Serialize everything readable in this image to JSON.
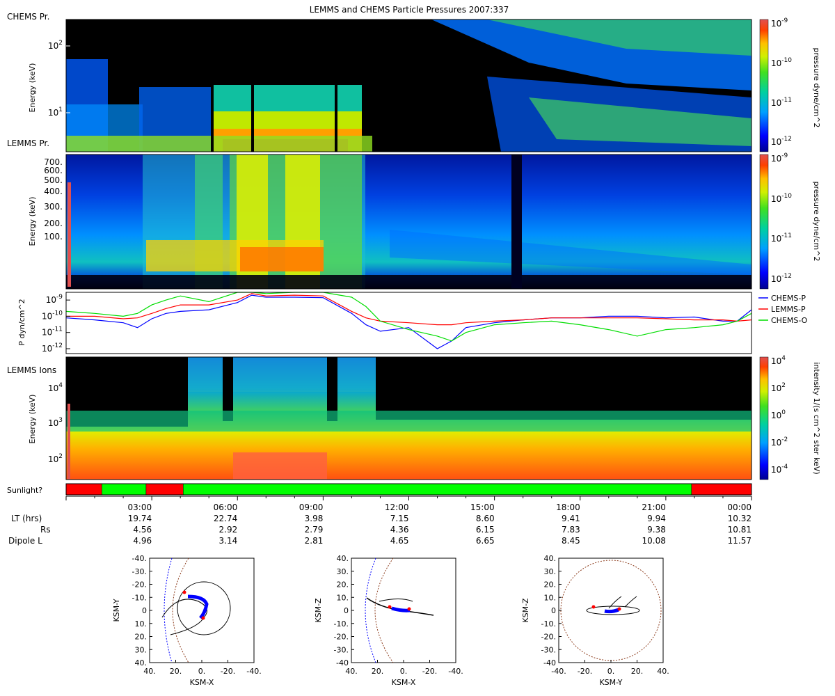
{
  "title": "LEMMS and CHEMS Particle Pressures  2007:337",
  "colors": {
    "sun_on": "#00ff00",
    "sun_off": "#ff0000",
    "chems_p": "#0000ff",
    "lemms_p": "#ff0000",
    "chems_o": "#00dd00"
  },
  "chart_data": [
    {
      "type": "heatmap",
      "name": "chems-pressure-spectrogram",
      "panel_label": "CHEMS Pr.",
      "ylabel": "Energy (keV)",
      "yscale": "log",
      "ylim": [
        3,
        220
      ],
      "ytick_labels": [
        {
          "value": 100,
          "label": "10",
          "sup": "2"
        },
        {
          "value": 10,
          "label": "10",
          "sup": "1"
        }
      ],
      "colorbar": {
        "label": "pressure dyne/cm^2",
        "scale": "log",
        "range": [
          1e-12,
          1e-09
        ],
        "ticks": [
          {
            "value": 1e-09,
            "label": "10",
            "sup": "-9"
          },
          {
            "value": 1e-10,
            "label": "10",
            "sup": "-10"
          },
          {
            "value": 1e-11,
            "label": "10",
            "sup": "-11"
          },
          {
            "value": 1e-12,
            "label": "10",
            "sup": "-12"
          }
        ]
      }
    },
    {
      "type": "heatmap",
      "name": "lemms-pressure-spectrogram",
      "panel_label": "LEMMS Pr.",
      "ylabel": "Energy (keV)",
      "yscale": "log",
      "ylim": [
        30,
        780
      ],
      "ytick_labels": [
        {
          "value": 700,
          "label": "700."
        },
        {
          "value": 600,
          "label": "600."
        },
        {
          "value": 500,
          "label": "500."
        },
        {
          "value": 400,
          "label": "400."
        },
        {
          "value": 300,
          "label": "300."
        },
        {
          "value": 200,
          "label": "200."
        },
        {
          "value": 100,
          "label": "100."
        }
      ],
      "colorbar": {
        "label": "pressure dyne/cm^2",
        "scale": "log",
        "range": [
          1e-12,
          1e-09
        ],
        "ticks": [
          {
            "value": 1e-09,
            "label": "10",
            "sup": "-9"
          },
          {
            "value": 1e-10,
            "label": "10",
            "sup": "-10"
          },
          {
            "value": 1e-11,
            "label": "10",
            "sup": "-11"
          },
          {
            "value": 1e-12,
            "label": "10",
            "sup": "-12"
          }
        ]
      }
    },
    {
      "type": "line",
      "name": "partial-pressure-lines",
      "ylabel": "P dyn/cm^2",
      "yscale": "log",
      "ylim": [
        5e-13,
        3e-09
      ],
      "ytick_labels": [
        {
          "value": 1e-09,
          "label": "10",
          "sup": "-9"
        },
        {
          "value": 1e-10,
          "label": "10",
          "sup": "-10"
        },
        {
          "value": 1e-11,
          "label": "10",
          "sup": "-11"
        },
        {
          "value": 1e-12,
          "label": "10",
          "sup": "-12"
        }
      ],
      "legend_position": "right",
      "x_hours": [
        0,
        1,
        2,
        2.5,
        3,
        3.5,
        4,
        5,
        6,
        6.5,
        7,
        8,
        9,
        10,
        10.5,
        11,
        12,
        13,
        13.5,
        14,
        15,
        16,
        17,
        18,
        19,
        20,
        21,
        22,
        23,
        23.5,
        24
      ],
      "series": [
        {
          "name": "CHEMS-P",
          "color": "#0000ff",
          "values": [
            8e-11,
            6e-11,
            4e-11,
            2e-11,
            7e-11,
            1.5e-10,
            2e-10,
            2.5e-10,
            7e-10,
            2e-09,
            1.5e-09,
            1.5e-09,
            1.4e-09,
            1.5e-10,
            3e-11,
            1.2e-11,
            2e-11,
            1e-12,
            3e-12,
            2e-11,
            4e-11,
            6e-11,
            8e-11,
            8e-11,
            1e-10,
            1e-10,
            8e-11,
            9e-11,
            5e-11,
            5e-11,
            2.5e-10
          ]
        },
        {
          "name": "LEMMS-P",
          "color": "#ff0000",
          "values": [
            1e-10,
            1e-10,
            7e-11,
            8e-11,
            1.5e-10,
            3e-10,
            5e-10,
            5e-10,
            1e-09,
            2.5e-09,
            1.8e-09,
            2e-09,
            1.8e-09,
            2e-10,
            8e-11,
            5e-11,
            4e-11,
            3e-11,
            3e-11,
            4e-11,
            5e-11,
            6e-11,
            8e-11,
            8e-11,
            8e-11,
            8e-11,
            7e-11,
            6e-11,
            6e-11,
            5e-11,
            6e-11
          ]
        },
        {
          "name": "CHEMS-O",
          "color": "#00dd00",
          "values": [
            2e-10,
            1.5e-10,
            1e-10,
            1.5e-10,
            5e-10,
            1e-09,
            1.8e-09,
            8e-10,
            3e-09,
            3e-09,
            2.5e-09,
            3e-09,
            3e-09,
            1.5e-09,
            4e-10,
            5e-11,
            1.5e-11,
            6e-12,
            3e-12,
            1e-11,
            3e-11,
            4e-11,
            5e-11,
            3e-11,
            1.5e-11,
            6e-12,
            1.5e-11,
            2e-11,
            3e-11,
            5e-11,
            1.5e-10
          ]
        }
      ]
    },
    {
      "type": "heatmap",
      "name": "lemms-ions-spectrogram",
      "panel_label": "LEMMS Ions",
      "ylabel": "Energy (keV)",
      "yscale": "log",
      "ylim": [
        25,
        60000
      ],
      "ytick_labels": [
        {
          "value": 10000,
          "label": "10",
          "sup": "4"
        },
        {
          "value": 1000,
          "label": "10",
          "sup": "3"
        },
        {
          "value": 100,
          "label": "10",
          "sup": "2"
        }
      ],
      "colorbar": {
        "label": "intensity 1/(s cm^2 ster keV)",
        "scale": "log",
        "range": [
          1e-05,
          10000.0
        ],
        "ticks": [
          {
            "value": 10000.0,
            "label": "10",
            "sup": "4"
          },
          {
            "value": 100.0,
            "label": "10",
            "sup": "2"
          },
          {
            "value": 1,
            "label": "10",
            "sup": "0"
          },
          {
            "value": 0.01,
            "label": "10",
            "sup": "-2"
          },
          {
            "value": 0.0001,
            "label": "10",
            "sup": "-4"
          }
        ]
      }
    },
    {
      "type": "bar",
      "name": "sunlight-bar",
      "label": "Sunlight?",
      "segments": [
        {
          "start_h": 0,
          "end_h": 1.25,
          "sunlit": false
        },
        {
          "start_h": 1.25,
          "end_h": 2.8,
          "sunlit": true
        },
        {
          "start_h": 2.8,
          "end_h": 4.1,
          "sunlit": false
        },
        {
          "start_h": 4.1,
          "end_h": 21.9,
          "sunlit": true
        },
        {
          "start_h": 21.9,
          "end_h": 24,
          "sunlit": false
        }
      ]
    }
  ],
  "time_axis": {
    "ticks": [
      "03:00",
      "06:00",
      "09:00",
      "12:00",
      "15:00",
      "18:00",
      "21:00",
      "00:00"
    ],
    "tick_hours": [
      3,
      6,
      9,
      12,
      15,
      18,
      21,
      24
    ],
    "rows": [
      {
        "label": "LT (hrs)",
        "values": [
          "19.74",
          "22.74",
          "3.98",
          "7.15",
          "8.60",
          "9.41",
          "9.94",
          "10.32"
        ]
      },
      {
        "label": "Rs",
        "values": [
          "4.56",
          "2.92",
          "2.79",
          "4.36",
          "6.15",
          "7.83",
          "9.38",
          "10.81"
        ]
      },
      {
        "label": "Dipole L",
        "values": [
          "4.96",
          "3.14",
          "2.81",
          "4.65",
          "6.65",
          "8.45",
          "10.08",
          "11.57"
        ]
      }
    ]
  },
  "orbit_plots": [
    {
      "xlabel": "KSM-X",
      "ylabel": "KSM-Y",
      "xticks": [
        "40.",
        "20.",
        "0.",
        "-20.",
        "-40."
      ],
      "yticks": [
        "-40.",
        "-30.",
        "-20.",
        "-10.",
        "0",
        "10.",
        "20.",
        "30.",
        "40."
      ]
    },
    {
      "xlabel": "KSM-X",
      "ylabel": "KSM-Z",
      "xticks": [
        "40.",
        "20.",
        "0.",
        "-20.",
        "-40."
      ],
      "yticks": [
        "40.",
        "30.",
        "20.",
        "10.",
        "0",
        "-10.",
        "-20.",
        "-30.",
        "-40"
      ]
    },
    {
      "xlabel": "KSM-Y",
      "ylabel": "KSM-Z",
      "xticks": [
        "-40.",
        "-20.",
        "0.",
        "20.",
        "40."
      ],
      "yticks": [
        "40.",
        "30.",
        "20.",
        "10.",
        "0",
        "-10.",
        "-20.",
        "-30.",
        "-40"
      ]
    }
  ]
}
